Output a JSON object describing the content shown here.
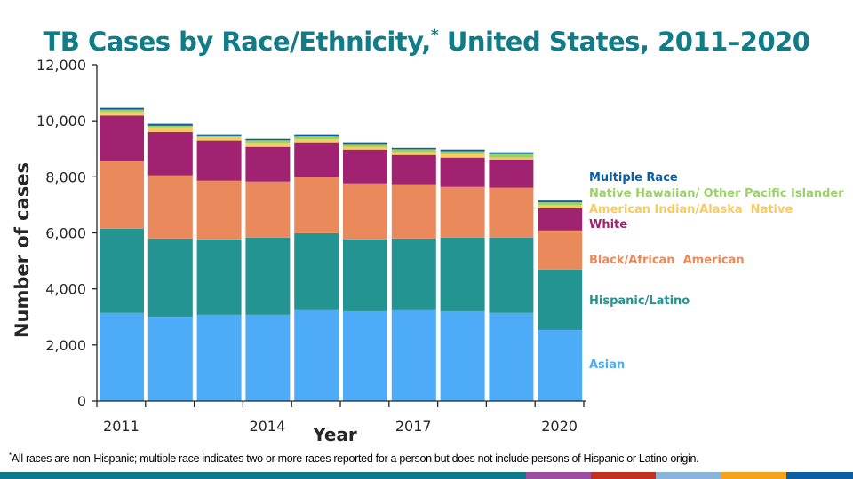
{
  "title": {
    "text": "TB Cases by Race/Ethnicity,",
    "marker": "*",
    "suffix": "United States, 2011–2020"
  },
  "footnote": {
    "marker": "*",
    "text": "All races are non-Hispanic; multiple race indicates two or more races reported for a person but does not include persons of Hispanic or Latino origin."
  },
  "bottom_strip_colors": [
    "#0E7A87",
    "#9B4F9E",
    "#C0321F",
    "#8AB4D8",
    "#F5A21F",
    "#0B5DA5"
  ],
  "chart_data": {
    "type": "bar",
    "stacked": true,
    "title": "TB Cases by Race/Ethnicity,* United States, 2011–2020",
    "xlabel": "Year",
    "ylabel": "Number of cases",
    "ylim": [
      0,
      12000
    ],
    "yticks": [
      0,
      2000,
      4000,
      6000,
      8000,
      10000,
      12000
    ],
    "ytick_labels": [
      "0",
      "2,000",
      "4,000",
      "6,000",
      "8,000",
      "10,000",
      "12,000"
    ],
    "categories": [
      "2011",
      "2012",
      "2013",
      "2014",
      "2015",
      "2016",
      "2017",
      "2018",
      "2019",
      "2020"
    ],
    "xtick_labels_shown": {
      "2011": "2011",
      "2014": "2014",
      "2017": "2017",
      "2020": "2020"
    },
    "grid": false,
    "legend_position": "right",
    "series": [
      {
        "name": "Asian",
        "color": "#4DABF7",
        "values": [
          3140,
          3010,
          3075,
          3075,
          3265,
          3200,
          3265,
          3200,
          3140,
          2535
        ]
      },
      {
        "name": "Hispanic/Latino",
        "color": "#249493",
        "values": [
          3010,
          2790,
          2695,
          2755,
          2725,
          2570,
          2535,
          2630,
          2690,
          2155
        ]
      },
      {
        "name": "Black/African  American",
        "color": "#EA8A5C",
        "values": [
          2410,
          2250,
          2090,
          2000,
          2000,
          1995,
          1935,
          1810,
          1780,
          1395
        ]
      },
      {
        "name": "White",
        "color": "#A02271",
        "values": [
          1620,
          1550,
          1430,
          1235,
          1235,
          1205,
          1045,
          1045,
          1010,
          795
        ]
      },
      {
        "name": "American Indian/Alaska  Native",
        "color": "#F8CB62",
        "values": [
          130,
          160,
          120,
          140,
          110,
          90,
          95,
          120,
          70,
          110
        ]
      },
      {
        "name": "Native Hawaiian/ Other Pacific Islander",
        "color": "#9BD266",
        "values": [
          90,
          60,
          60,
          95,
          125,
          110,
          105,
          105,
          125,
          100
        ]
      },
      {
        "name": "Multiple Race",
        "color": "#0B5DA5",
        "values": [
          60,
          70,
          40,
          50,
          50,
          55,
          50,
          60,
          60,
          60
        ]
      }
    ]
  }
}
